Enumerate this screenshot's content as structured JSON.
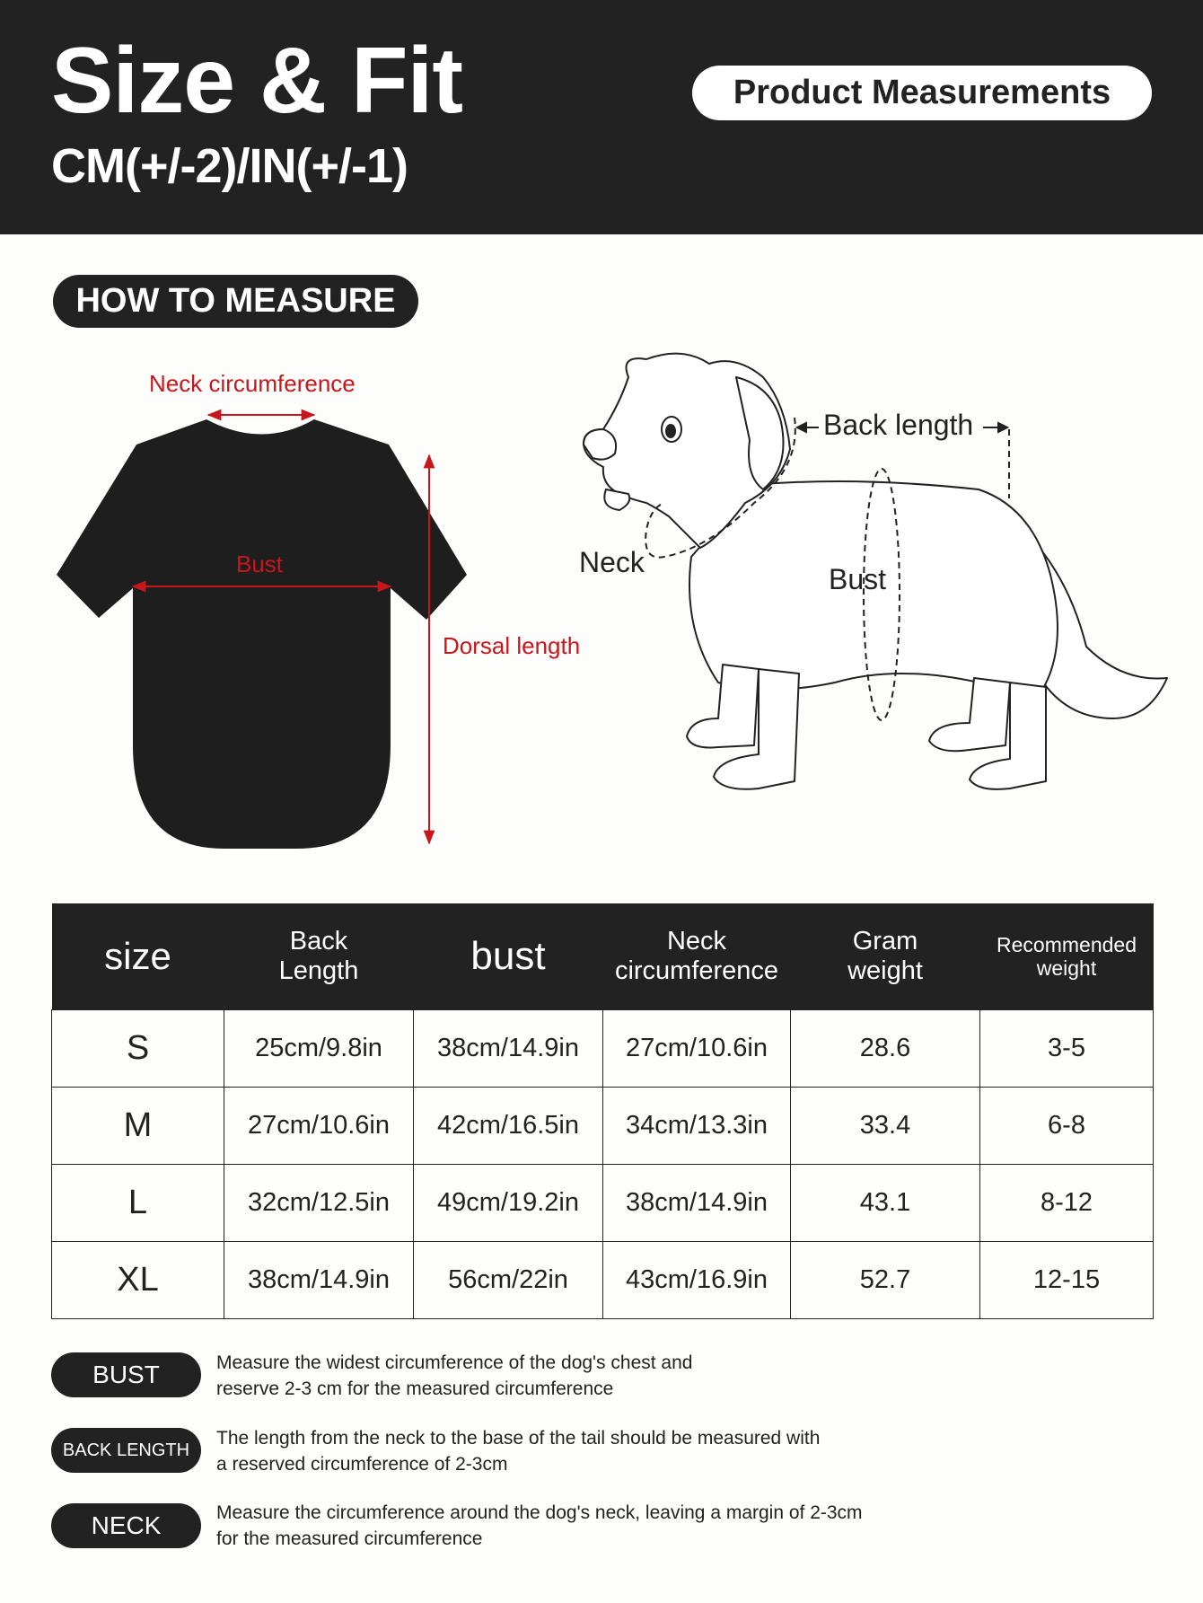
{
  "header": {
    "title": "Size & Fit",
    "subtitle": "CM(+/-2)/IN(+/-1)",
    "badge": "Product Measurements"
  },
  "how_to_measure": {
    "label": "HOW TO MEASURE",
    "shirt_labels": {
      "neck": "Neck circumference",
      "bust": "Bust",
      "dorsal": "Dorsal length"
    },
    "dog_labels": {
      "back": "Back length",
      "neck": "Neck",
      "bust": "Bust"
    }
  },
  "table": {
    "headers": [
      "size",
      "Back Length",
      "bust",
      "Neck circumference",
      "Gram weight",
      "Recommended weight"
    ],
    "rows": [
      [
        "S",
        "25cm/9.8in",
        "38cm/14.9in",
        "27cm/10.6in",
        "28.6",
        "3-5"
      ],
      [
        "M",
        "27cm/10.6in",
        "42cm/16.5in",
        "34cm/13.3in",
        "33.4",
        "6-8"
      ],
      [
        "L",
        "32cm/12.5in",
        "49cm/19.2in",
        "38cm/14.9in",
        "43.1",
        "8-12"
      ],
      [
        "XL",
        "38cm/14.9in",
        "56cm/22in",
        "43cm/16.9in",
        "52.7",
        "12-15"
      ]
    ]
  },
  "notes": [
    {
      "label": "BUST",
      "line1": "Measure the widest circumference of the dog's chest and",
      "line2": "reserve 2-3 cm for the measured circumference"
    },
    {
      "label": "BACK LENGTH",
      "line1": "The length from the neck to the base of the tail should be measured with",
      "line2": "a reserved circumference of 2-3cm"
    },
    {
      "label": "NECK",
      "line1": "Measure the circumference around the dog's neck, leaving a margin of 2-3cm",
      "line2": "for the measured circumference"
    }
  ],
  "colors": {
    "dark": "#222222",
    "accent_red": "#c8161d",
    "background": "#fdfdfb"
  }
}
